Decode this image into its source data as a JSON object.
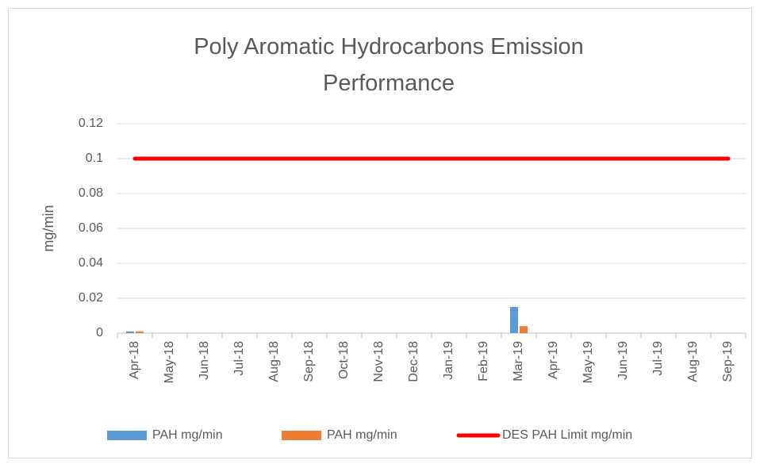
{
  "chart_data": {
    "type": "bar",
    "title": "Poly Aromatic Hydrocarbons Emission Performance",
    "y_label": "mg/min",
    "categories": [
      "Apr-18",
      "May-18",
      "Jun-18",
      "Jul-18",
      "Aug-18",
      "Sep-18",
      "Oct-18",
      "Nov-18",
      "Dec-18",
      "Jan-19",
      "Feb-19",
      "Mar-19",
      "Apr-19",
      "May-19",
      "Jun-19",
      "Jul-19",
      "Aug-19",
      "Sep-19"
    ],
    "series": [
      {
        "name": "PAH mg/min",
        "type": "bar",
        "color": "#5b9bd5",
        "values": [
          0.001,
          0,
          0,
          0,
          0,
          0,
          0,
          0,
          0,
          0,
          0,
          0.015,
          0,
          0,
          0,
          0,
          0,
          0
        ]
      },
      {
        "name": "PAH mg/min",
        "type": "bar",
        "color": "#ed7d31",
        "values": [
          0.001,
          0,
          0,
          0,
          0,
          0,
          0,
          0,
          0,
          0,
          0,
          0.004,
          0,
          0,
          0,
          0,
          0,
          0
        ]
      },
      {
        "name": "DES PAH Limit mg/min",
        "type": "line",
        "color": "#ff0000",
        "values": [
          0.1,
          0.1,
          0.1,
          0.1,
          0.1,
          0.1,
          0.1,
          0.1,
          0.1,
          0.1,
          0.1,
          0.1,
          0.1,
          0.1,
          0.1,
          0.1,
          0.1,
          0.1
        ]
      }
    ],
    "ylim": [
      0,
      0.12
    ],
    "yticks": [
      0,
      0.02,
      0.04,
      0.06,
      0.08,
      0.1,
      0.12
    ],
    "grid": true,
    "legend": "bottom"
  }
}
